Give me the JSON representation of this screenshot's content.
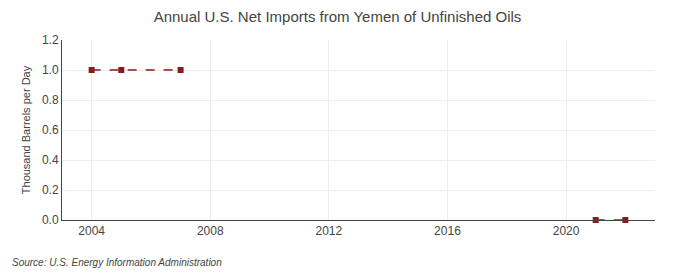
{
  "chart_data": {
    "type": "line",
    "title": "Annual U.S. Net Imports from Yemen of Unfinished Oils",
    "ylabel": "Thousand Barrels per Day",
    "annotations": [
      "Source: U.S. Energy Information Administration"
    ],
    "x": [
      2004,
      2005,
      2007,
      2021,
      2022
    ],
    "series": [
      {
        "color": "#8b1a1a",
        "values": [
          1.0,
          1.0,
          1.0,
          null,
          null
        ]
      },
      {
        "color": "#8b1a1a",
        "values": [
          null,
          null,
          null,
          0.0,
          0.0
        ]
      }
    ],
    "marker": "square",
    "line_style": "dashed",
    "xlim": [
      2003,
      2023
    ],
    "xticks": [
      2004,
      2008,
      2012,
      2016,
      2020
    ],
    "ylim": [
      0.0,
      1.2
    ],
    "yticks": [
      {
        "value": 0.0,
        "label": "0.0"
      },
      0.2,
      0.4,
      0.6,
      0.8,
      {
        "value": 1.0,
        "label": "1.0"
      },
      1.2
    ],
    "grid": true
  }
}
